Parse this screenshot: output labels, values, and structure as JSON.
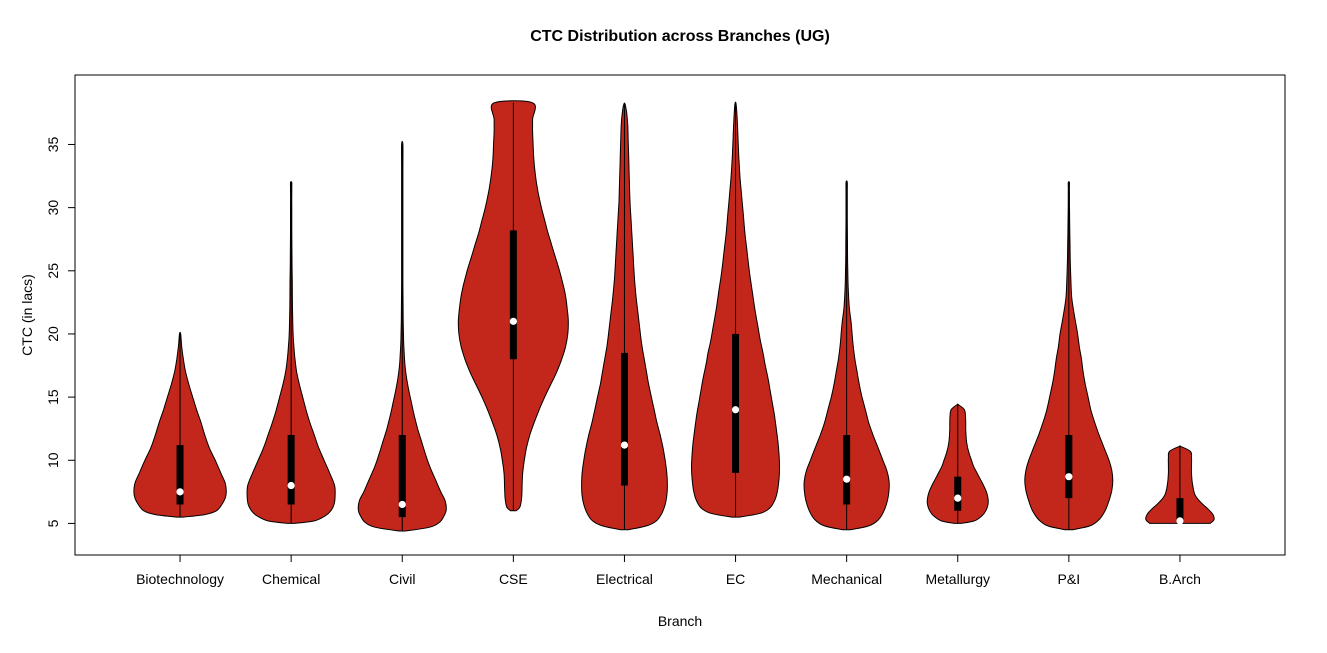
{
  "chart_data": {
    "type": "violin",
    "title": "CTC Distribution across Branches (UG)",
    "xlabel": "Branch",
    "ylabel": "CTC (in lacs)",
    "ylim": [
      2.5,
      40.5
    ],
    "yticks": [
      5,
      10,
      15,
      20,
      25,
      30,
      35
    ],
    "grid": false,
    "legend": "none",
    "categories": [
      "Biotechnology",
      "Chemical",
      "Civil",
      "CSE",
      "Electrical",
      "EC",
      "Mechanical",
      "Metallurgy",
      "P&I",
      "B.Arch"
    ],
    "colors": {
      "violin_fill": "#C3271B",
      "violin_stroke": "#000000",
      "box": "#000000",
      "median_dot": "#FFFFFF",
      "axis": "#000000",
      "background": "#FFFFFF"
    },
    "series": [
      {
        "name": "Biotechnology",
        "min": 5.5,
        "max": 20,
        "q1": 6.5,
        "median": 7.5,
        "q3": 11.2,
        "density": [
          [
            5.5,
            0.06
          ],
          [
            5.7,
            0.45
          ],
          [
            6.0,
            0.66
          ],
          [
            6.5,
            0.76
          ],
          [
            7.0,
            0.82
          ],
          [
            7.5,
            0.84
          ],
          [
            8.2,
            0.82
          ],
          [
            9.0,
            0.74
          ],
          [
            10.0,
            0.64
          ],
          [
            11.0,
            0.53
          ],
          [
            12.0,
            0.45
          ],
          [
            13.0,
            0.38
          ],
          [
            14.0,
            0.3
          ],
          [
            15.0,
            0.23
          ],
          [
            16.0,
            0.16
          ],
          [
            17.0,
            0.1
          ],
          [
            18.0,
            0.06
          ],
          [
            19.0,
            0.03
          ],
          [
            20.0,
            0.0
          ]
        ]
      },
      {
        "name": "Chemical",
        "min": 5.0,
        "max": 32,
        "q1": 6.5,
        "median": 8.0,
        "q3": 12,
        "density": [
          [
            5.0,
            0.06
          ],
          [
            5.2,
            0.42
          ],
          [
            5.6,
            0.62
          ],
          [
            6.0,
            0.72
          ],
          [
            6.5,
            0.78
          ],
          [
            7.2,
            0.8
          ],
          [
            8.0,
            0.79
          ],
          [
            9.0,
            0.7
          ],
          [
            10.0,
            0.6
          ],
          [
            11.0,
            0.5
          ],
          [
            12.0,
            0.42
          ],
          [
            13.0,
            0.34
          ],
          [
            14.0,
            0.27
          ],
          [
            15.0,
            0.21
          ],
          [
            16.0,
            0.15
          ],
          [
            17.0,
            0.1
          ],
          [
            18.0,
            0.07
          ],
          [
            19.0,
            0.05
          ],
          [
            20.0,
            0.035
          ],
          [
            22.0,
            0.025
          ],
          [
            24.0,
            0.02
          ],
          [
            26.0,
            0.015
          ],
          [
            28.0,
            0.012
          ],
          [
            30.0,
            0.01
          ],
          [
            31.5,
            0.006
          ],
          [
            32.0,
            0.0
          ]
        ]
      },
      {
        "name": "Civil",
        "min": 4.4,
        "max": 35,
        "q1": 5.5,
        "median": 6.5,
        "q3": 12,
        "density": [
          [
            4.4,
            0.06
          ],
          [
            4.7,
            0.5
          ],
          [
            5.1,
            0.68
          ],
          [
            5.6,
            0.76
          ],
          [
            6.1,
            0.8
          ],
          [
            6.8,
            0.78
          ],
          [
            7.5,
            0.7
          ],
          [
            8.5,
            0.6
          ],
          [
            9.5,
            0.5
          ],
          [
            10.5,
            0.42
          ],
          [
            11.5,
            0.35
          ],
          [
            12.5,
            0.28
          ],
          [
            13.5,
            0.22
          ],
          [
            14.5,
            0.17
          ],
          [
            15.5,
            0.12
          ],
          [
            16.5,
            0.08
          ],
          [
            17.5,
            0.05
          ],
          [
            18.5,
            0.035
          ],
          [
            19.5,
            0.025
          ],
          [
            21.0,
            0.018
          ],
          [
            24.0,
            0.012
          ],
          [
            27.0,
            0.01
          ],
          [
            30.0,
            0.008
          ],
          [
            33.0,
            0.005
          ],
          [
            35.0,
            0.0
          ]
        ]
      },
      {
        "name": "CSE",
        "min": 6.0,
        "max": 38.3,
        "q1": 18,
        "median": 21,
        "q3": 28.2,
        "density": [
          [
            6.0,
            0.05
          ],
          [
            6.3,
            0.12
          ],
          [
            7.0,
            0.15
          ],
          [
            8.0,
            0.16
          ],
          [
            9.0,
            0.17
          ],
          [
            10.0,
            0.2
          ],
          [
            11.0,
            0.24
          ],
          [
            12.0,
            0.3
          ],
          [
            13.0,
            0.38
          ],
          [
            14.0,
            0.47
          ],
          [
            15.0,
            0.57
          ],
          [
            16.0,
            0.68
          ],
          [
            17.0,
            0.79
          ],
          [
            18.0,
            0.88
          ],
          [
            19.0,
            0.95
          ],
          [
            20.0,
            0.99
          ],
          [
            21.0,
            1.0
          ],
          [
            22.0,
            0.98
          ],
          [
            23.0,
            0.95
          ],
          [
            24.0,
            0.9
          ],
          [
            25.0,
            0.84
          ],
          [
            26.0,
            0.77
          ],
          [
            27.0,
            0.7
          ],
          [
            28.0,
            0.63
          ],
          [
            29.0,
            0.57
          ],
          [
            30.0,
            0.51
          ],
          [
            31.0,
            0.46
          ],
          [
            32.0,
            0.42
          ],
          [
            33.0,
            0.39
          ],
          [
            34.0,
            0.37
          ],
          [
            35.0,
            0.36
          ],
          [
            36.0,
            0.35
          ],
          [
            37.0,
            0.35
          ],
          [
            38.3,
            0.35
          ]
        ]
      },
      {
        "name": "Electrical",
        "min": 4.5,
        "max": 38.2,
        "q1": 8,
        "median": 11.2,
        "q3": 18.5,
        "density": [
          [
            4.5,
            0.07
          ],
          [
            4.8,
            0.4
          ],
          [
            5.2,
            0.58
          ],
          [
            5.8,
            0.68
          ],
          [
            6.5,
            0.74
          ],
          [
            7.2,
            0.77
          ],
          [
            8.0,
            0.78
          ],
          [
            9.0,
            0.77
          ],
          [
            10.0,
            0.74
          ],
          [
            11.0,
            0.7
          ],
          [
            12.0,
            0.65
          ],
          [
            13.0,
            0.59
          ],
          [
            14.0,
            0.54
          ],
          [
            15.0,
            0.49
          ],
          [
            16.0,
            0.44
          ],
          [
            17.0,
            0.4
          ],
          [
            18.0,
            0.36
          ],
          [
            19.0,
            0.32
          ],
          [
            20.0,
            0.29
          ],
          [
            21.5,
            0.25
          ],
          [
            23.0,
            0.21
          ],
          [
            24.5,
            0.18
          ],
          [
            26.0,
            0.16
          ],
          [
            27.5,
            0.14
          ],
          [
            29.0,
            0.12
          ],
          [
            30.5,
            0.1
          ],
          [
            32.0,
            0.09
          ],
          [
            33.5,
            0.08
          ],
          [
            35.0,
            0.07
          ],
          [
            36.5,
            0.06
          ],
          [
            37.5,
            0.04
          ],
          [
            38.2,
            0.0
          ]
        ]
      },
      {
        "name": "EC",
        "min": 5.5,
        "max": 38.2,
        "q1": 9,
        "median": 14,
        "q3": 20,
        "density": [
          [
            5.5,
            0.07
          ],
          [
            5.8,
            0.45
          ],
          [
            6.2,
            0.62
          ],
          [
            6.8,
            0.71
          ],
          [
            7.5,
            0.76
          ],
          [
            8.5,
            0.79
          ],
          [
            9.5,
            0.8
          ],
          [
            10.5,
            0.79
          ],
          [
            11.5,
            0.77
          ],
          [
            12.5,
            0.74
          ],
          [
            13.5,
            0.71
          ],
          [
            14.5,
            0.67
          ],
          [
            15.5,
            0.63
          ],
          [
            16.5,
            0.59
          ],
          [
            17.5,
            0.54
          ],
          [
            18.5,
            0.5
          ],
          [
            19.5,
            0.45
          ],
          [
            20.5,
            0.41
          ],
          [
            22.0,
            0.35
          ],
          [
            23.5,
            0.3
          ],
          [
            25.0,
            0.25
          ],
          [
            26.5,
            0.21
          ],
          [
            28.0,
            0.17
          ],
          [
            29.5,
            0.14
          ],
          [
            31.0,
            0.11
          ],
          [
            32.5,
            0.08
          ],
          [
            34.0,
            0.06
          ],
          [
            35.5,
            0.045
          ],
          [
            37.0,
            0.03
          ],
          [
            38.2,
            0.0
          ]
        ]
      },
      {
        "name": "Mechanical",
        "min": 4.5,
        "max": 32,
        "q1": 6.5,
        "median": 8.5,
        "q3": 12,
        "density": [
          [
            4.5,
            0.07
          ],
          [
            4.8,
            0.4
          ],
          [
            5.3,
            0.58
          ],
          [
            6.0,
            0.68
          ],
          [
            6.8,
            0.74
          ],
          [
            7.6,
            0.77
          ],
          [
            8.4,
            0.77
          ],
          [
            9.2,
            0.73
          ],
          [
            10.0,
            0.66
          ],
          [
            11.0,
            0.57
          ],
          [
            12.0,
            0.48
          ],
          [
            13.0,
            0.4
          ],
          [
            14.0,
            0.34
          ],
          [
            15.0,
            0.28
          ],
          [
            16.0,
            0.23
          ],
          [
            17.0,
            0.19
          ],
          [
            18.0,
            0.15
          ],
          [
            19.0,
            0.12
          ],
          [
            20.0,
            0.1
          ],
          [
            21.0,
            0.08
          ],
          [
            22.0,
            0.05
          ],
          [
            23.5,
            0.03
          ],
          [
            25.0,
            0.02
          ],
          [
            27.0,
            0.015
          ],
          [
            29.0,
            0.012
          ],
          [
            31.0,
            0.008
          ],
          [
            32.0,
            0.0
          ]
        ]
      },
      {
        "name": "Metallurgy",
        "min": 5.0,
        "max": 14.4,
        "q1": 6.0,
        "median": 7.0,
        "q3": 8.7,
        "density": [
          [
            5.0,
            0.06
          ],
          [
            5.2,
            0.3
          ],
          [
            5.6,
            0.44
          ],
          [
            6.0,
            0.51
          ],
          [
            6.5,
            0.55
          ],
          [
            7.0,
            0.55
          ],
          [
            7.5,
            0.52
          ],
          [
            8.0,
            0.47
          ],
          [
            8.5,
            0.41
          ],
          [
            9.0,
            0.35
          ],
          [
            9.5,
            0.29
          ],
          [
            10.0,
            0.25
          ],
          [
            10.5,
            0.21
          ],
          [
            11.0,
            0.18
          ],
          [
            11.5,
            0.16
          ],
          [
            12.0,
            0.15
          ],
          [
            12.5,
            0.145
          ],
          [
            13.0,
            0.145
          ],
          [
            13.5,
            0.14
          ],
          [
            14.0,
            0.12
          ],
          [
            14.4,
            0.0
          ]
        ]
      },
      {
        "name": "P&I",
        "min": 4.5,
        "max": 32,
        "q1": 7.0,
        "median": 8.7,
        "q3": 12,
        "density": [
          [
            4.5,
            0.07
          ],
          [
            4.8,
            0.38
          ],
          [
            5.3,
            0.55
          ],
          [
            6.0,
            0.66
          ],
          [
            6.8,
            0.73
          ],
          [
            7.6,
            0.78
          ],
          [
            8.4,
            0.8
          ],
          [
            9.2,
            0.78
          ],
          [
            10.0,
            0.73
          ],
          [
            11.0,
            0.64
          ],
          [
            12.0,
            0.55
          ],
          [
            13.0,
            0.47
          ],
          [
            14.0,
            0.4
          ],
          [
            15.0,
            0.35
          ],
          [
            16.0,
            0.3
          ],
          [
            17.0,
            0.26
          ],
          [
            18.0,
            0.23
          ],
          [
            19.0,
            0.19
          ],
          [
            20.0,
            0.16
          ],
          [
            21.0,
            0.12
          ],
          [
            22.0,
            0.08
          ],
          [
            23.0,
            0.05
          ],
          [
            24.5,
            0.035
          ],
          [
            26.0,
            0.025
          ],
          [
            28.0,
            0.018
          ],
          [
            30.0,
            0.012
          ],
          [
            31.5,
            0.008
          ],
          [
            32.0,
            0.0
          ]
        ]
      },
      {
        "name": "B.Arch",
        "min": 5.0,
        "max": 11.1,
        "q1": 5.0,
        "median": 5.2,
        "q3": 7.0,
        "density": [
          [
            5.0,
            0.55
          ],
          [
            5.3,
            0.62
          ],
          [
            5.7,
            0.6
          ],
          [
            6.1,
            0.52
          ],
          [
            6.5,
            0.42
          ],
          [
            6.9,
            0.33
          ],
          [
            7.3,
            0.27
          ],
          [
            7.8,
            0.24
          ],
          [
            8.4,
            0.22
          ],
          [
            9.0,
            0.21
          ],
          [
            9.6,
            0.21
          ],
          [
            10.2,
            0.21
          ],
          [
            10.7,
            0.19
          ],
          [
            11.1,
            0.0
          ]
        ]
      }
    ]
  }
}
